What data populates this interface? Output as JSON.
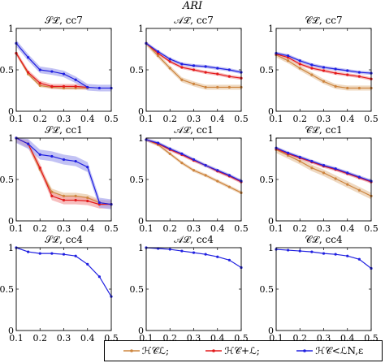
{
  "figure": {
    "suptitle": "ARI",
    "colors": {
      "hc": "#cd853f",
      "hc_band": "#e8c9a6",
      "hcplus": "#e31a1c",
      "hcplus_band": "#f4a3a3",
      "hcn": "#2020e0",
      "hcn_band": "#a8a8f0"
    }
  },
  "legend": {
    "items": [
      {
        "series": "hc",
        "label": "ℋ𝒞ℒ;"
      },
      {
        "series": "hcplus",
        "label": "ℋ𝒞+ℒ;"
      },
      {
        "series": "hcn",
        "label": "ℋ𝒞<ℒN,ε"
      }
    ]
  },
  "chart_data": [
    {
      "type": "line",
      "title": "𝒮ℒ, cc7",
      "xlim": [
        0.1,
        0.5
      ],
      "ylim": [
        0,
        1
      ],
      "xticks": [
        "0.1",
        "0.2",
        "0.3",
        "0.4",
        "0.5"
      ],
      "yticks": [
        "0",
        "0.5",
        "1"
      ],
      "x": [
        0.1,
        0.15,
        0.2,
        0.25,
        0.3,
        0.35,
        0.4,
        0.45,
        0.5
      ],
      "series": [
        {
          "key": "hc",
          "values": [
            0.7,
            0.45,
            0.31,
            0.29,
            0.28,
            0.28,
            0.28,
            null,
            null
          ],
          "band": 0.02
        },
        {
          "key": "hcplus",
          "values": [
            0.7,
            0.47,
            0.34,
            0.3,
            0.3,
            0.3,
            0.29,
            null,
            null
          ],
          "band": 0.03
        },
        {
          "key": "hcn",
          "values": [
            0.82,
            0.65,
            0.5,
            0.48,
            0.45,
            0.38,
            0.29,
            0.28,
            0.28
          ],
          "band": 0.04
        }
      ]
    },
    {
      "type": "line",
      "title": "𝒜ℒ, cc7",
      "xlim": [
        0.1,
        0.5
      ],
      "ylim": [
        0,
        1
      ],
      "xticks": [
        "0.1",
        "0.2",
        "0.3",
        "0.4",
        "0.5"
      ],
      "yticks": [
        "0",
        "0.5",
        "1"
      ],
      "x": [
        0.1,
        0.15,
        0.2,
        0.25,
        0.3,
        0.35,
        0.4,
        0.45,
        0.5
      ],
      "series": [
        {
          "key": "hc",
          "values": [
            0.82,
            0.67,
            0.52,
            0.38,
            0.33,
            0.29,
            0.29,
            0.29,
            0.29
          ],
          "band": 0.03
        },
        {
          "key": "hcplus",
          "values": [
            0.82,
            0.7,
            0.6,
            0.53,
            0.5,
            0.47,
            0.45,
            0.42,
            0.4
          ],
          "band": 0.02
        },
        {
          "key": "hcn",
          "values": [
            0.82,
            0.72,
            0.63,
            0.57,
            0.55,
            0.54,
            0.52,
            0.5,
            0.47
          ],
          "band": 0.02
        }
      ]
    },
    {
      "type": "line",
      "title": "𝒞ℒ, cc7",
      "xlim": [
        0.1,
        0.5
      ],
      "ylim": [
        0,
        1
      ],
      "xticks": [
        "0.1",
        "0.2",
        "0.3",
        "0.4",
        "0.5"
      ],
      "yticks": [
        "0",
        "0.5",
        "1"
      ],
      "x": [
        0.1,
        0.15,
        0.2,
        0.25,
        0.3,
        0.35,
        0.4,
        0.45,
        0.5
      ],
      "series": [
        {
          "key": "hc",
          "values": [
            0.68,
            0.61,
            0.52,
            0.44,
            0.36,
            0.3,
            0.28,
            0.28,
            0.28
          ],
          "band": 0.03
        },
        {
          "key": "hcplus",
          "values": [
            0.69,
            0.65,
            0.57,
            0.52,
            0.49,
            0.46,
            0.44,
            0.42,
            0.39
          ],
          "band": 0.02
        },
        {
          "key": "hcn",
          "values": [
            0.7,
            0.67,
            0.61,
            0.56,
            0.53,
            0.51,
            0.49,
            0.47,
            0.46
          ],
          "band": 0.02
        }
      ]
    },
    {
      "type": "line",
      "title": "𝒮ℒ, cc1",
      "xlim": [
        0.1,
        0.5
      ],
      "ylim": [
        0,
        1
      ],
      "xticks": [
        "0.1",
        "0.2",
        "0.3",
        "0.4",
        "0.5"
      ],
      "yticks": [
        "0",
        "0.5",
        "1"
      ],
      "x": [
        0.1,
        0.15,
        0.2,
        0.25,
        0.3,
        0.35,
        0.4,
        0.45,
        0.5
      ],
      "series": [
        {
          "key": "hc",
          "values": [
            1.0,
            0.93,
            0.62,
            0.35,
            0.3,
            0.3,
            0.28,
            0.22,
            0.2
          ],
          "band": 0.04
        },
        {
          "key": "hcplus",
          "values": [
            1.0,
            0.93,
            0.64,
            0.3,
            0.25,
            0.25,
            0.24,
            0.2,
            0.2
          ],
          "band": 0.05
        },
        {
          "key": "hcn",
          "values": [
            1.0,
            0.93,
            0.8,
            0.78,
            0.74,
            0.72,
            0.65,
            0.22,
            0.2
          ],
          "band": 0.06
        }
      ]
    },
    {
      "type": "line",
      "title": "𝒜ℒ, cc1",
      "xlim": [
        0.1,
        0.5
      ],
      "ylim": [
        0,
        1
      ],
      "xticks": [
        "0.1",
        "0.2",
        "0.3",
        "0.4",
        "0.5"
      ],
      "yticks": [
        "0",
        "0.5",
        "1"
      ],
      "x": [
        0.1,
        0.15,
        0.2,
        0.25,
        0.3,
        0.35,
        0.4,
        0.45,
        0.5
      ],
      "series": [
        {
          "key": "hc",
          "values": [
            0.98,
            0.92,
            0.81,
            0.7,
            0.61,
            0.55,
            0.48,
            0.41,
            0.34
          ],
          "band": 0.02
        },
        {
          "key": "hcplus",
          "values": [
            0.98,
            0.93,
            0.86,
            0.8,
            0.73,
            0.67,
            0.6,
            0.54,
            0.47
          ],
          "band": 0.02
        },
        {
          "key": "hcn",
          "values": [
            0.98,
            0.94,
            0.87,
            0.81,
            0.74,
            0.67,
            0.61,
            0.55,
            0.48
          ],
          "band": 0.02
        }
      ]
    },
    {
      "type": "line",
      "title": "𝒞ℒ, cc1",
      "xlim": [
        0.1,
        0.5
      ],
      "ylim": [
        0,
        1
      ],
      "xticks": [
        "0.1",
        "0.2",
        "0.3",
        "0.4",
        "0.5"
      ],
      "yticks": [
        "0",
        "0.5",
        "1"
      ],
      "x": [
        0.1,
        0.15,
        0.2,
        0.25,
        0.3,
        0.35,
        0.4,
        0.45,
        0.5
      ],
      "series": [
        {
          "key": "hc",
          "values": [
            0.86,
            0.79,
            0.72,
            0.64,
            0.58,
            0.51,
            0.44,
            0.37,
            0.3
          ],
          "band": 0.04
        },
        {
          "key": "hcplus",
          "values": [
            0.87,
            0.81,
            0.76,
            0.71,
            0.66,
            0.62,
            0.57,
            0.52,
            0.47
          ],
          "band": 0.02
        },
        {
          "key": "hcn",
          "values": [
            0.88,
            0.82,
            0.77,
            0.72,
            0.67,
            0.63,
            0.58,
            0.53,
            0.48
          ],
          "band": 0.02
        }
      ]
    },
    {
      "type": "line",
      "title": "𝒮ℒ, cc4",
      "xlim": [
        0.1,
        0.5
      ],
      "ylim": [
        0,
        1
      ],
      "xticks": [
        "0.1",
        "0.2",
        "0.3",
        "0.4",
        "0.5"
      ],
      "yticks": [
        "0",
        "0.5",
        "1"
      ],
      "x": [
        0.1,
        0.15,
        0.2,
        0.25,
        0.3,
        0.35,
        0.4,
        0.45,
        0.5
      ],
      "series": [
        {
          "key": "hcn",
          "values": [
            1.0,
            0.95,
            0.93,
            0.93,
            0.92,
            0.9,
            0.8,
            0.65,
            0.41
          ],
          "band": 0.0
        }
      ]
    },
    {
      "type": "line",
      "title": "𝒜ℒ, cc4",
      "xlim": [
        0.1,
        0.5
      ],
      "ylim": [
        0,
        1
      ],
      "xticks": [
        "0.1",
        "0.2",
        "0.3",
        "0.4",
        "0.5"
      ],
      "yticks": [
        "0",
        "0.5",
        "1"
      ],
      "x": [
        0.1,
        0.15,
        0.2,
        0.25,
        0.3,
        0.35,
        0.4,
        0.45,
        0.5
      ],
      "series": [
        {
          "key": "hcn",
          "values": [
            1.0,
            0.99,
            0.98,
            0.96,
            0.94,
            0.92,
            0.89,
            0.85,
            0.76
          ],
          "band": 0.0
        }
      ]
    },
    {
      "type": "line",
      "title": "𝒞ℒ, cc4",
      "xlim": [
        0.1,
        0.5
      ],
      "ylim": [
        0,
        1
      ],
      "xticks": [
        "0.1",
        "0.2",
        "0.3",
        "0.4",
        "0.5"
      ],
      "yticks": [
        "0",
        "0.5",
        "1"
      ],
      "x": [
        0.1,
        0.15,
        0.2,
        0.25,
        0.3,
        0.35,
        0.4,
        0.45,
        0.5
      ],
      "series": [
        {
          "key": "hcn",
          "values": [
            0.98,
            0.97,
            0.96,
            0.95,
            0.93,
            0.92,
            0.9,
            0.86,
            0.75
          ],
          "band": 0.0
        }
      ]
    }
  ]
}
